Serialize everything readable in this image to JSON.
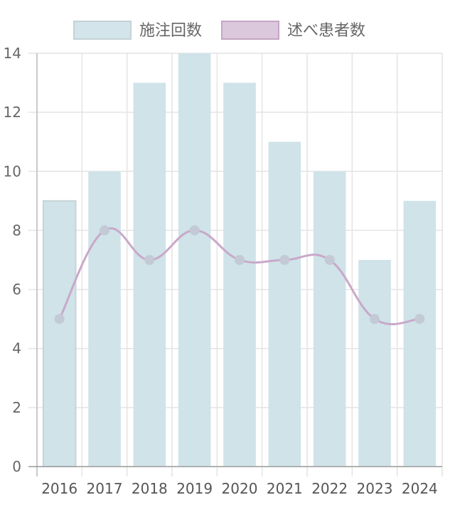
{
  "chart_data": {
    "type": "bar",
    "categories": [
      "2016",
      "2017",
      "2018",
      "2019",
      "2020",
      "2021",
      "2022",
      "2023",
      "2024"
    ],
    "series": [
      {
        "name": "施注回数",
        "type": "bar",
        "values": [
          9,
          10,
          13,
          14,
          13,
          11,
          10,
          7,
          9
        ],
        "color": "#cfe3e9",
        "border_color": "#c8d3d6"
      },
      {
        "name": "述べ患者数",
        "type": "line",
        "smooth": true,
        "values": [
          5,
          8,
          7,
          8,
          7,
          7,
          7,
          5,
          5
        ],
        "color": "#c9a8c9",
        "point_color": "#c3c9d5"
      }
    ],
    "ylim": [
      0,
      14
    ],
    "yticks": [
      "0",
      "2",
      "4",
      "6",
      "8",
      "10",
      "12",
      "14"
    ],
    "grid": true,
    "legend_position": "top"
  }
}
